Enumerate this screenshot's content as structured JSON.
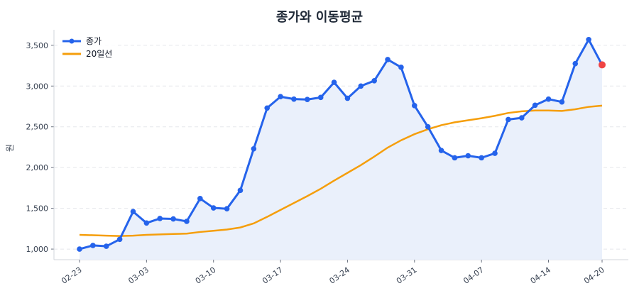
{
  "chart_data": {
    "type": "line",
    "title": "종가와 이동평균",
    "xlabel": "",
    "ylabel": "원",
    "x": [
      "02-23",
      "02-24",
      "02-25",
      "02-26",
      "02-27",
      "03-03",
      "03-04",
      "03-05",
      "03-06",
      "03-09",
      "03-10",
      "03-11",
      "03-12",
      "03-13",
      "03-16",
      "03-17",
      "03-18",
      "03-19",
      "03-20",
      "03-23",
      "03-24",
      "03-25",
      "03-26",
      "03-27",
      "03-30",
      "03-31",
      "04-01",
      "04-02",
      "04-03",
      "04-06",
      "04-07",
      "04-08",
      "04-09",
      "04-10",
      "04-13",
      "04-14",
      "04-15",
      "04-16",
      "04-17",
      "04-20"
    ],
    "xtick_labels": [
      "02-23",
      "03-03",
      "03-10",
      "03-17",
      "03-24",
      "03-31",
      "04-07",
      "04-14",
      "04-20"
    ],
    "ytick_labels": [
      "1,000",
      "1,500",
      "2,000",
      "2,500",
      "3,000",
      "3,500"
    ],
    "yticks": [
      1000,
      1500,
      2000,
      2500,
      3000,
      3500
    ],
    "ylim": [
      870,
      3690
    ],
    "grid": "horizontal dashed",
    "legend_position": "top-left",
    "series": [
      {
        "name": "종가",
        "color": "#2563eb",
        "fill": "#eaf0fb",
        "markers": true,
        "last_point_color": "#ef4444",
        "values": [
          1000,
          1045,
          1035,
          1120,
          1460,
          1320,
          1375,
          1370,
          1340,
          1620,
          1505,
          1495,
          1720,
          2230,
          2730,
          2870,
          2840,
          2835,
          2860,
          3045,
          2850,
          3000,
          3065,
          3325,
          3230,
          2760,
          2500,
          2210,
          2120,
          2145,
          2120,
          2175,
          2590,
          2610,
          2765,
          2840,
          2805,
          3275,
          3570,
          3260
        ]
      },
      {
        "name": "20일선",
        "color": "#f59e0b",
        "markers": false,
        "values": [
          1175,
          1170,
          1165,
          1160,
          1165,
          1175,
          1180,
          1185,
          1190,
          1210,
          1225,
          1240,
          1265,
          1315,
          1395,
          1480,
          1565,
          1650,
          1740,
          1840,
          1935,
          2030,
          2135,
          2245,
          2335,
          2410,
          2470,
          2520,
          2555,
          2580,
          2605,
          2635,
          2670,
          2690,
          2700,
          2700,
          2695,
          2715,
          2745,
          2760
        ]
      }
    ]
  }
}
